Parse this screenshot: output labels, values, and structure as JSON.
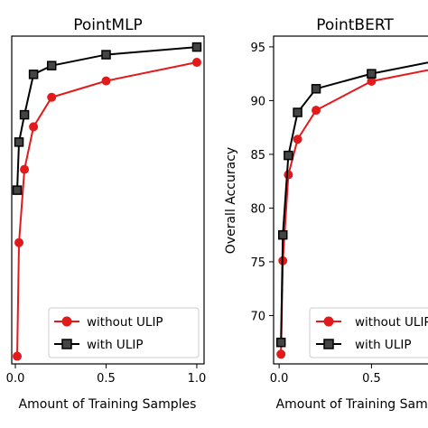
{
  "colors": {
    "without": "#e31a1c",
    "with": "#000000",
    "axis": "#000000",
    "legend_border": "#cccccc"
  },
  "chart_data": [
    {
      "type": "line",
      "title": "PointMLP",
      "xlabel": "Amount of Training Samples",
      "ylabel": "",
      "xlim": [
        -0.02,
        1.04
      ],
      "ylim": [
        65.5,
        95.5
      ],
      "xticks": [
        0.0,
        0.5,
        1.0
      ],
      "xtick_labels": [
        "0.0",
        "0.5",
        "1.0"
      ],
      "yticks": [],
      "ytick_labels": [],
      "legend": {
        "position": "lower-right",
        "entries": [
          "without ULIP",
          "with ULIP"
        ]
      },
      "series": [
        {
          "name": "without ULIP",
          "color_key": "without",
          "marker": "circle",
          "x": [
            0.01,
            0.02,
            0.05,
            0.1,
            0.2,
            0.5,
            1.0
          ],
          "y": [
            66.2,
            76.6,
            83.3,
            87.2,
            89.9,
            91.4,
            93.1
          ]
        },
        {
          "name": "with ULIP",
          "color_key": "with",
          "marker": "square",
          "x": [
            0.01,
            0.02,
            0.05,
            0.1,
            0.2,
            0.5,
            1.0
          ],
          "y": [
            81.4,
            85.8,
            88.3,
            92.0,
            92.8,
            93.8,
            94.5
          ]
        }
      ]
    },
    {
      "type": "line",
      "title": "PointBERT",
      "xlabel": "Amount of Training Samples",
      "ylabel": "Overall Accuracy",
      "xlim": [
        -0.03,
        0.85
      ],
      "ylim": [
        65.5,
        96.0
      ],
      "xticks": [
        0.0,
        0.5
      ],
      "xtick_labels": [
        "0.0",
        "0.5"
      ],
      "yticks": [
        70,
        75,
        80,
        85,
        90,
        95
      ],
      "ytick_labels": [
        "70",
        "75",
        "80",
        "85",
        "90",
        "95"
      ],
      "legend": {
        "position": "lower-right",
        "entries": [
          "without ULIP",
          "with ULIP"
        ]
      },
      "series": [
        {
          "name": "without ULIP",
          "color_key": "without",
          "marker": "circle",
          "x": [
            0.01,
            0.02,
            0.05,
            0.1,
            0.2,
            0.5,
            1.0
          ],
          "y": [
            66.4,
            75.1,
            83.1,
            86.4,
            89.1,
            91.8,
            93.5
          ]
        },
        {
          "name": "with ULIP",
          "color_key": "with",
          "marker": "square",
          "x": [
            0.01,
            0.02,
            0.05,
            0.1,
            0.2,
            0.5,
            1.0
          ],
          "y": [
            67.5,
            77.5,
            84.9,
            88.9,
            91.1,
            92.5,
            94.2
          ]
        }
      ]
    }
  ]
}
